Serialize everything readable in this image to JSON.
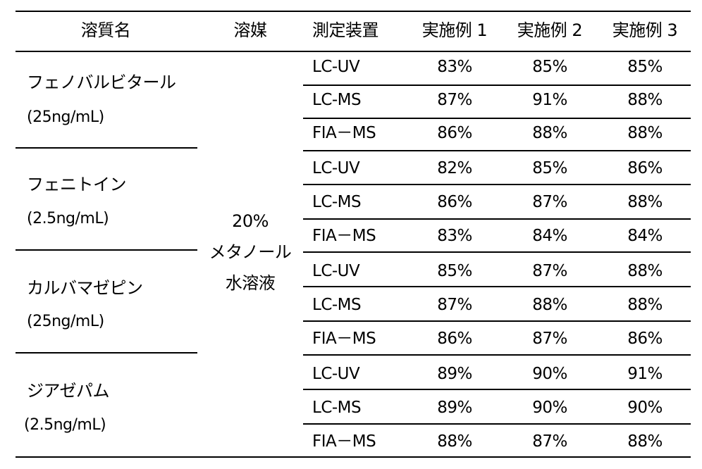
{
  "headers": [
    "溶質名",
    "溶媒",
    "測定装置",
    "実施例 1",
    "実施例 2",
    "実施例 3"
  ],
  "solvent": [
    "20%",
    "メタノール",
    "水溶液"
  ],
  "groups": [
    {
      "name": "フェノバルビタール",
      "conc": "(25ng/mL)",
      "rows": [
        {
          "device": "LC-UV",
          "v1": "83%",
          "v2": "85%",
          "v3": "85%"
        },
        {
          "device": "LC-MS",
          "v1": "87%",
          "v2": "91%",
          "v3": "88%"
        },
        {
          "device": "FIA－MS",
          "v1": "86%",
          "v2": "88%",
          "v3": "88%"
        }
      ]
    },
    {
      "name": "フェニトイン",
      "conc": "(2.5ng/mL)",
      "rows": [
        {
          "device": "LC-UV",
          "v1": "82%",
          "v2": "85%",
          "v3": "86%"
        },
        {
          "device": "LC-MS",
          "v1": "86%",
          "v2": "87%",
          "v3": "88%"
        },
        {
          "device": "FIA－MS",
          "v1": "83%",
          "v2": "84%",
          "v3": "84%"
        }
      ]
    },
    {
      "name": "カルバマゼピン",
      "conc": "(25ng/mL)",
      "rows": [
        {
          "device": "LC-UV",
          "v1": "85%",
          "v2": "87%",
          "v3": "88%"
        },
        {
          "device": "LC-MS",
          "v1": "87%",
          "v2": "88%",
          "v3": "88%"
        },
        {
          "device": "FIA－MS",
          "v1": "86%",
          "v2": "87%",
          "v3": "86%"
        }
      ]
    },
    {
      "name": "ジアゼパム",
      "conc": "(2.5ng/mL)",
      "rows": [
        {
          "device": "LC-UV",
          "v1": "89%",
          "v2": "90%",
          "v3": "91%"
        },
        {
          "device": "LC-MS",
          "v1": "89%",
          "v2": "90%",
          "v3": "90%"
        },
        {
          "device": "FIA－MS",
          "v1": "88%",
          "v2": "87%",
          "v3": "88%"
        }
      ]
    }
  ]
}
